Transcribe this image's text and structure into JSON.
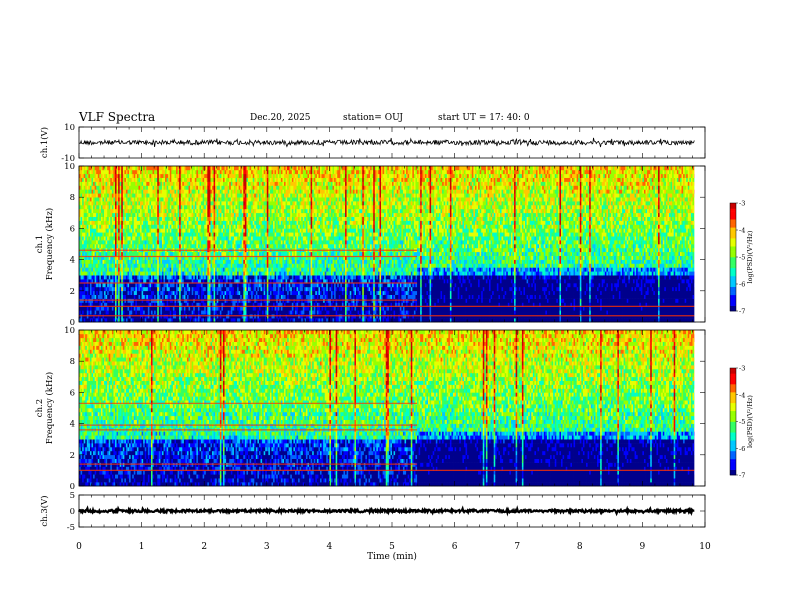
{
  "header": {
    "title": "VLF Spectra",
    "date": "Dec.20, 2025",
    "station": "station= OUJ",
    "start": "start  UT =  17: 40: 0"
  },
  "chart_data": {
    "type": "heatmap",
    "title": "VLF Spectra",
    "xlabel": "Time  (min)",
    "xlim": [
      0,
      10
    ],
    "x_ticks": [
      "0",
      "1",
      "2",
      "3",
      "4",
      "5",
      "6",
      "7",
      "8",
      "9",
      "10"
    ],
    "data_end_min": 9.83,
    "panels": [
      {
        "id": "ch1-waveform",
        "type": "line",
        "ylabel": "ch.1(V)",
        "ylim": [
          -10,
          10
        ],
        "y_ticks": [
          "10",
          "-10"
        ],
        "mean": 0,
        "amplitude": 1.5
      },
      {
        "id": "ch1-spectrogram",
        "type": "heatmap",
        "ylabel": "ch.1\nFrequency  (kHz)",
        "ylim": [
          0,
          10
        ],
        "y_ticks": [
          "0",
          "2",
          "4",
          "6",
          "8",
          "10"
        ],
        "colorbar": {
          "label": "log(PSD)(V²/Hz)",
          "range": [
            -7,
            -3
          ],
          "ticks": [
            "-3",
            "-4",
            "-5",
            "-6",
            "-7"
          ]
        }
      },
      {
        "id": "ch2-spectrogram",
        "type": "heatmap",
        "ylabel": "ch.2\nFrequency  (kHz)",
        "ylim": [
          0,
          10
        ],
        "y_ticks": [
          "0",
          "2",
          "4",
          "6",
          "8",
          "10"
        ],
        "colorbar": {
          "label": "log(PSD)(V²/Hz)",
          "range": [
            -7,
            -3
          ],
          "ticks": [
            "-3",
            "-4",
            "-5",
            "-6",
            "-7"
          ]
        }
      },
      {
        "id": "ch3-waveform",
        "type": "line",
        "ylabel": "ch.3(V)",
        "ylim": [
          -5,
          5
        ],
        "y_ticks": [
          "5",
          "0",
          "-5"
        ],
        "mean": 0,
        "amplitude": 0.4
      }
    ],
    "colormap": [
      "#00008c",
      "#0000ff",
      "#0064ff",
      "#00c8ff",
      "#00ffc8",
      "#32ff64",
      "#96ff00",
      "#e6ff00",
      "#ffc800",
      "#ff6400",
      "#ff0000",
      "#c80000"
    ]
  }
}
